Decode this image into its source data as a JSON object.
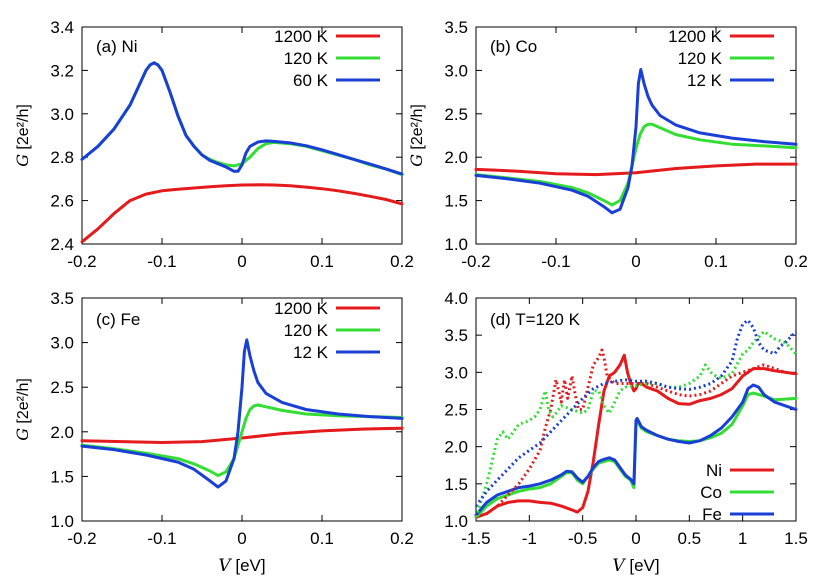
{
  "chart_data": [
    {
      "type": "line",
      "annotation": "(a) Ni",
      "ylabel_symbol": "G",
      "ylabel_unit": "[2e²/h]",
      "xlabel": "",
      "xlim": [
        -0.2,
        0.2
      ],
      "ylim": [
        2.4,
        3.4
      ],
      "xticks": [
        "-0.2",
        "-0.1",
        "0",
        "0.1",
        "0.2"
      ],
      "yticks": [
        "2.4",
        "2.6",
        "2.8",
        "3.0",
        "3.2",
        "3.4"
      ],
      "legend_position": "top-right",
      "series": [
        {
          "name": "1200 K",
          "color": "#e41a1c",
          "x": [
            -0.2,
            -0.18,
            -0.16,
            -0.14,
            -0.12,
            -0.1,
            -0.08,
            -0.06,
            -0.04,
            -0.02,
            0,
            0.02,
            0.04,
            0.06,
            0.08,
            0.1,
            0.12,
            0.14,
            0.16,
            0.18,
            0.2
          ],
          "y": [
            2.41,
            2.47,
            2.54,
            2.6,
            2.63,
            2.645,
            2.652,
            2.658,
            2.664,
            2.668,
            2.672,
            2.673,
            2.672,
            2.668,
            2.662,
            2.655,
            2.645,
            2.633,
            2.62,
            2.605,
            2.585
          ]
        },
        {
          "name": "120 K",
          "color": "#33dd33",
          "x": [
            -0.2,
            -0.18,
            -0.16,
            -0.14,
            -0.13,
            -0.12,
            -0.115,
            -0.11,
            -0.105,
            -0.1,
            -0.09,
            -0.08,
            -0.07,
            -0.06,
            -0.05,
            -0.04,
            -0.03,
            -0.02,
            -0.01,
            0,
            0.01,
            0.02,
            0.03,
            0.04,
            0.06,
            0.08,
            0.1,
            0.12,
            0.14,
            0.16,
            0.18,
            0.2
          ],
          "y": [
            2.79,
            2.85,
            2.93,
            3.04,
            3.12,
            3.2,
            3.225,
            3.235,
            3.225,
            3.2,
            3.1,
            2.99,
            2.9,
            2.85,
            2.81,
            2.79,
            2.775,
            2.765,
            2.76,
            2.77,
            2.8,
            2.84,
            2.862,
            2.868,
            2.862,
            2.85,
            2.83,
            2.81,
            2.79,
            2.765,
            2.745,
            2.72
          ]
        },
        {
          "name": "60 K",
          "color": "#1a3fd6",
          "x": [
            -0.2,
            -0.18,
            -0.16,
            -0.14,
            -0.13,
            -0.12,
            -0.115,
            -0.11,
            -0.105,
            -0.1,
            -0.09,
            -0.08,
            -0.07,
            -0.06,
            -0.05,
            -0.04,
            -0.03,
            -0.02,
            -0.01,
            -0.005,
            0,
            0.005,
            0.01,
            0.02,
            0.03,
            0.04,
            0.06,
            0.08,
            0.1,
            0.12,
            0.14,
            0.16,
            0.18,
            0.2
          ],
          "y": [
            2.79,
            2.85,
            2.93,
            3.04,
            3.12,
            3.2,
            3.225,
            3.235,
            3.225,
            3.2,
            3.1,
            2.99,
            2.9,
            2.85,
            2.81,
            2.785,
            2.77,
            2.755,
            2.735,
            2.735,
            2.765,
            2.82,
            2.85,
            2.87,
            2.875,
            2.873,
            2.866,
            2.853,
            2.834,
            2.812,
            2.79,
            2.768,
            2.746,
            2.722
          ]
        }
      ]
    },
    {
      "type": "line",
      "annotation": "(b) Co",
      "ylabel_symbol": "G",
      "ylabel_unit": "[2e²/h]",
      "xlabel": "",
      "xlim": [
        -0.2,
        0.2
      ],
      "ylim": [
        1.0,
        3.5
      ],
      "xticks": [
        "-0.2",
        "-0.1",
        "0",
        "0.1",
        "0.2"
      ],
      "yticks": [
        "1.0",
        "1.5",
        "2.0",
        "2.5",
        "3.0",
        "3.5"
      ],
      "legend_position": "top-right",
      "series": [
        {
          "name": "1200 K",
          "color": "#e41a1c",
          "x": [
            -0.2,
            -0.15,
            -0.1,
            -0.05,
            0,
            0.05,
            0.1,
            0.15,
            0.2
          ],
          "y": [
            1.86,
            1.84,
            1.81,
            1.8,
            1.82,
            1.87,
            1.9,
            1.92,
            1.92
          ]
        },
        {
          "name": "120 K",
          "color": "#33dd33",
          "x": [
            -0.2,
            -0.16,
            -0.12,
            -0.08,
            -0.06,
            -0.04,
            -0.03,
            -0.02,
            -0.01,
            0,
            0.005,
            0.01,
            0.015,
            0.02,
            0.03,
            0.05,
            0.08,
            0.12,
            0.16,
            0.2
          ],
          "y": [
            1.8,
            1.76,
            1.72,
            1.65,
            1.59,
            1.5,
            1.45,
            1.5,
            1.7,
            2.1,
            2.26,
            2.35,
            2.38,
            2.38,
            2.34,
            2.26,
            2.2,
            2.15,
            2.13,
            2.11
          ]
        },
        {
          "name": "12 K",
          "color": "#1a3fd6",
          "x": [
            -0.2,
            -0.16,
            -0.12,
            -0.08,
            -0.06,
            -0.04,
            -0.03,
            -0.02,
            -0.01,
            -0.005,
            0,
            0.003,
            0.006,
            0.01,
            0.015,
            0.02,
            0.03,
            0.05,
            0.08,
            0.12,
            0.16,
            0.2
          ],
          "y": [
            1.79,
            1.75,
            1.7,
            1.62,
            1.55,
            1.43,
            1.36,
            1.4,
            1.65,
            1.9,
            2.35,
            2.85,
            3.01,
            2.85,
            2.7,
            2.6,
            2.48,
            2.37,
            2.28,
            2.22,
            2.18,
            2.15
          ]
        }
      ]
    },
    {
      "type": "line",
      "annotation": "(c) Fe",
      "ylabel_symbol": "G",
      "ylabel_unit": "[2e²/h]",
      "xlabel": "V [eV]",
      "xlim": [
        -0.2,
        0.2
      ],
      "ylim": [
        1.0,
        3.5
      ],
      "xticks": [
        "-0.2",
        "-0.1",
        "0",
        "0.1",
        "0.2"
      ],
      "yticks": [
        "1.0",
        "1.5",
        "2.0",
        "2.5",
        "3.0",
        "3.5"
      ],
      "legend_position": "top-right",
      "series": [
        {
          "name": "1200 K",
          "color": "#e41a1c",
          "x": [
            -0.2,
            -0.15,
            -0.1,
            -0.05,
            0,
            0.05,
            0.1,
            0.15,
            0.2
          ],
          "y": [
            1.9,
            1.89,
            1.88,
            1.89,
            1.93,
            1.98,
            2.01,
            2.03,
            2.04
          ]
        },
        {
          "name": "120 K",
          "color": "#33dd33",
          "x": [
            -0.2,
            -0.16,
            -0.12,
            -0.08,
            -0.06,
            -0.04,
            -0.03,
            -0.02,
            -0.01,
            0,
            0.005,
            0.01,
            0.015,
            0.02,
            0.03,
            0.05,
            0.08,
            0.12,
            0.16,
            0.2
          ],
          "y": [
            1.85,
            1.81,
            1.76,
            1.7,
            1.64,
            1.56,
            1.51,
            1.55,
            1.7,
            2.0,
            2.15,
            2.25,
            2.29,
            2.3,
            2.28,
            2.24,
            2.2,
            2.18,
            2.17,
            2.16
          ]
        },
        {
          "name": "12 K",
          "color": "#1a3fd6",
          "x": [
            -0.2,
            -0.16,
            -0.12,
            -0.08,
            -0.06,
            -0.04,
            -0.03,
            -0.02,
            -0.01,
            -0.005,
            0,
            0.003,
            0.006,
            0.01,
            0.015,
            0.02,
            0.03,
            0.05,
            0.08,
            0.12,
            0.16,
            0.2
          ],
          "y": [
            1.84,
            1.8,
            1.74,
            1.66,
            1.58,
            1.45,
            1.38,
            1.45,
            1.7,
            2.0,
            2.5,
            2.9,
            3.03,
            2.85,
            2.68,
            2.55,
            2.43,
            2.33,
            2.25,
            2.2,
            2.17,
            2.15
          ]
        }
      ]
    },
    {
      "type": "line",
      "annotation": "(d) T=120 K",
      "ylabel_symbol": "",
      "ylabel_unit": "",
      "xlabel": "V [eV]",
      "xlim": [
        -1.5,
        1.5
      ],
      "ylim": [
        1.0,
        4.0
      ],
      "xticks": [
        "-1.5",
        "-1",
        "-0.5",
        "0",
        "0.5",
        "1",
        "1.5"
      ],
      "yticks": [
        "1.0",
        "1.5",
        "2.0",
        "2.5",
        "3.0",
        "3.5",
        "4.0"
      ],
      "legend_position": "bottom-right",
      "series": [
        {
          "name": "Ni",
          "color": "#e41a1c",
          "x": [
            -1.5,
            -1.4,
            -1.3,
            -1.2,
            -1.1,
            -1.0,
            -0.9,
            -0.8,
            -0.7,
            -0.6,
            -0.55,
            -0.5,
            -0.45,
            -0.4,
            -0.35,
            -0.3,
            -0.25,
            -0.2,
            -0.15,
            -0.11,
            -0.08,
            -0.05,
            -0.02,
            0,
            0.02,
            0.05,
            0.1,
            0.2,
            0.3,
            0.4,
            0.5,
            0.6,
            0.7,
            0.8,
            0.9,
            1.0,
            1.1,
            1.2,
            1.3,
            1.4,
            1.5
          ],
          "y": [
            1.05,
            1.1,
            1.2,
            1.25,
            1.27,
            1.27,
            1.25,
            1.24,
            1.2,
            1.15,
            1.12,
            1.18,
            1.4,
            1.8,
            2.3,
            2.75,
            2.95,
            3.0,
            3.1,
            3.23,
            3.0,
            2.85,
            2.75,
            2.78,
            2.85,
            2.85,
            2.8,
            2.75,
            2.65,
            2.58,
            2.57,
            2.62,
            2.65,
            2.7,
            2.78,
            2.95,
            3.05,
            3.05,
            3.02,
            3.0,
            2.98
          ]
        },
        {
          "name": "Co",
          "color": "#33dd33",
          "x": [
            -1.5,
            -1.4,
            -1.3,
            -1.2,
            -1.1,
            -1.0,
            -0.9,
            -0.8,
            -0.7,
            -0.65,
            -0.6,
            -0.55,
            -0.5,
            -0.45,
            -0.4,
            -0.35,
            -0.3,
            -0.25,
            -0.2,
            -0.15,
            -0.1,
            -0.05,
            -0.02,
            0,
            0.01,
            0.05,
            0.1,
            0.2,
            0.3,
            0.4,
            0.5,
            0.6,
            0.7,
            0.8,
            0.9,
            1.0,
            1.05,
            1.1,
            1.15,
            1.2,
            1.3,
            1.4,
            1.5
          ],
          "y": [
            1.05,
            1.2,
            1.3,
            1.35,
            1.4,
            1.43,
            1.45,
            1.5,
            1.6,
            1.65,
            1.65,
            1.55,
            1.5,
            1.6,
            1.7,
            1.78,
            1.8,
            1.82,
            1.8,
            1.7,
            1.6,
            1.55,
            1.45,
            2.3,
            2.35,
            2.25,
            2.2,
            2.15,
            2.1,
            2.08,
            2.07,
            2.08,
            2.12,
            2.18,
            2.3,
            2.55,
            2.7,
            2.72,
            2.7,
            2.68,
            2.63,
            2.64,
            2.65
          ]
        },
        {
          "name": "Fe",
          "color": "#1a3fd6",
          "x": [
            -1.5,
            -1.4,
            -1.3,
            -1.2,
            -1.1,
            -1.0,
            -0.9,
            -0.8,
            -0.7,
            -0.65,
            -0.6,
            -0.55,
            -0.5,
            -0.45,
            -0.4,
            -0.35,
            -0.3,
            -0.25,
            -0.2,
            -0.15,
            -0.1,
            -0.05,
            -0.02,
            0,
            0.01,
            0.05,
            0.1,
            0.2,
            0.3,
            0.4,
            0.5,
            0.6,
            0.7,
            0.8,
            0.9,
            1.0,
            1.05,
            1.1,
            1.15,
            1.2,
            1.3,
            1.4,
            1.5
          ],
          "y": [
            1.08,
            1.25,
            1.35,
            1.4,
            1.45,
            1.47,
            1.5,
            1.55,
            1.62,
            1.67,
            1.66,
            1.58,
            1.52,
            1.6,
            1.72,
            1.8,
            1.83,
            1.85,
            1.82,
            1.72,
            1.62,
            1.56,
            1.5,
            2.35,
            2.38,
            2.27,
            2.22,
            2.15,
            2.1,
            2.07,
            2.05,
            2.08,
            2.15,
            2.25,
            2.4,
            2.6,
            2.78,
            2.83,
            2.8,
            2.7,
            2.6,
            2.55,
            2.5
          ]
        },
        {
          "name": "",
          "color": "#e41a1c",
          "dashed": true,
          "x": [
            -1.5,
            -1.4,
            -1.3,
            -1.2,
            -1.1,
            -1.0,
            -0.9,
            -0.85,
            -0.8,
            -0.75,
            -0.7,
            -0.67,
            -0.64,
            -0.6,
            -0.57,
            -0.54,
            -0.5,
            -0.45,
            -0.4,
            -0.35,
            -0.32,
            -0.3,
            -0.27,
            -0.2,
            -0.1,
            0,
            0.1,
            0.2,
            0.3,
            0.4,
            0.5,
            0.6,
            0.7,
            0.8,
            0.9,
            1.0,
            1.1,
            1.2,
            1.3,
            1.4,
            1.5
          ],
          "y": [
            1.05,
            1.1,
            1.2,
            1.35,
            1.5,
            1.7,
            1.95,
            2.25,
            2.5,
            2.9,
            2.6,
            2.9,
            2.65,
            2.95,
            2.7,
            2.5,
            2.5,
            2.8,
            3.1,
            3.2,
            3.3,
            3.2,
            2.95,
            2.85,
            2.85,
            2.85,
            2.85,
            2.8,
            2.75,
            2.7,
            2.68,
            2.7,
            2.75,
            2.85,
            2.95,
            3.0,
            3.05,
            3.1,
            3.05,
            3.0,
            2.98
          ]
        },
        {
          "name": "",
          "color": "#33dd33",
          "dashed": true,
          "x": [
            -1.5,
            -1.4,
            -1.3,
            -1.25,
            -1.2,
            -1.1,
            -1.0,
            -0.95,
            -0.9,
            -0.85,
            -0.82,
            -0.78,
            -0.75,
            -0.7,
            -0.6,
            -0.5,
            -0.45,
            -0.4,
            -0.35,
            -0.3,
            -0.25,
            -0.2,
            -0.15,
            -0.1,
            0,
            0.1,
            0.2,
            0.3,
            0.4,
            0.5,
            0.6,
            0.65,
            0.7,
            0.75,
            0.8,
            0.9,
            1.0,
            1.05,
            1.1,
            1.2,
            1.3,
            1.4,
            1.5
          ],
          "y": [
            1.05,
            1.5,
            2.1,
            2.2,
            2.1,
            2.3,
            2.35,
            2.4,
            2.5,
            2.75,
            2.5,
            2.4,
            2.45,
            2.55,
            2.5,
            2.45,
            2.5,
            2.75,
            2.75,
            2.55,
            2.45,
            2.6,
            2.75,
            2.8,
            2.82,
            2.85,
            2.85,
            2.8,
            2.8,
            2.85,
            2.95,
            3.1,
            3.0,
            2.95,
            2.92,
            2.98,
            3.25,
            3.3,
            3.4,
            3.55,
            3.45,
            3.4,
            3.25
          ]
        },
        {
          "name": "",
          "color": "#1a3fd6",
          "dashed": true,
          "x": [
            -1.5,
            -1.4,
            -1.3,
            -1.2,
            -1.1,
            -1.0,
            -0.9,
            -0.8,
            -0.7,
            -0.6,
            -0.5,
            -0.4,
            -0.3,
            -0.2,
            -0.1,
            0,
            0.1,
            0.2,
            0.3,
            0.4,
            0.5,
            0.6,
            0.7,
            0.8,
            0.9,
            0.95,
            1.0,
            1.05,
            1.1,
            1.15,
            1.2,
            1.3,
            1.35,
            1.4,
            1.5
          ],
          "y": [
            1.2,
            1.4,
            1.55,
            1.7,
            1.85,
            1.95,
            2.05,
            2.2,
            2.35,
            2.5,
            2.65,
            2.78,
            2.85,
            2.88,
            2.9,
            2.88,
            2.88,
            2.85,
            2.8,
            2.78,
            2.77,
            2.8,
            2.85,
            2.95,
            3.15,
            3.45,
            3.65,
            3.7,
            3.6,
            3.4,
            3.3,
            3.25,
            3.35,
            3.4,
            3.55
          ]
        }
      ]
    }
  ]
}
